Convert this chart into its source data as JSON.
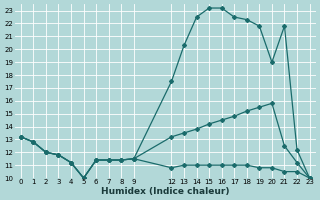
{
  "xlabel": "Humidex (Indice chaleur)",
  "bg_color": "#b2d8d8",
  "grid_color": "#ffffff",
  "line_color": "#1a6b6b",
  "ylim": [
    10,
    23.5
  ],
  "xlim": [
    -0.5,
    23.5
  ],
  "yticks": [
    10,
    11,
    12,
    13,
    14,
    15,
    16,
    17,
    18,
    19,
    20,
    21,
    22,
    23
  ],
  "xtick_positions": [
    0,
    1,
    2,
    3,
    4,
    5,
    6,
    7,
    8,
    9,
    12,
    13,
    14,
    15,
    16,
    17,
    18,
    19,
    20,
    21,
    22,
    23
  ],
  "xtick_labels": [
    "0",
    "1",
    "2",
    "3",
    "4",
    "5",
    "6",
    "7",
    "8",
    "9",
    "12",
    "13",
    "14",
    "15",
    "16",
    "17",
    "18",
    "19",
    "20",
    "21",
    "22",
    "23"
  ],
  "line_top_x": [
    0,
    1,
    2,
    3,
    4,
    5,
    6,
    7,
    8,
    9,
    12,
    13,
    14,
    15,
    16,
    17,
    18,
    19,
    20,
    21,
    22,
    23
  ],
  "line_top_y": [
    13.2,
    12.8,
    12.0,
    11.8,
    11.2,
    10.0,
    11.4,
    11.4,
    11.4,
    11.5,
    17.5,
    20.3,
    22.5,
    23.2,
    23.2,
    22.5,
    22.3,
    21.8,
    19.0,
    21.8,
    12.2,
    10.0
  ],
  "line_mid_x": [
    0,
    1,
    2,
    3,
    4,
    5,
    6,
    7,
    8,
    9,
    12,
    13,
    14,
    15,
    16,
    17,
    18,
    19,
    20,
    21,
    22,
    23
  ],
  "line_mid_y": [
    13.2,
    12.8,
    12.0,
    11.8,
    11.2,
    10.0,
    11.4,
    11.4,
    11.4,
    11.5,
    13.2,
    13.5,
    13.8,
    14.2,
    14.5,
    14.8,
    15.2,
    15.5,
    15.8,
    12.5,
    11.2,
    10.0
  ],
  "line_bot_x": [
    0,
    1,
    2,
    3,
    4,
    5,
    6,
    7,
    8,
    9,
    12,
    13,
    14,
    15,
    16,
    17,
    18,
    19,
    20,
    21,
    22,
    23
  ],
  "line_bot_y": [
    13.2,
    12.8,
    12.0,
    11.8,
    11.2,
    10.0,
    11.4,
    11.4,
    11.4,
    11.5,
    10.8,
    11.0,
    11.0,
    11.0,
    11.0,
    11.0,
    11.0,
    10.8,
    10.8,
    10.5,
    10.5,
    10.0
  ],
  "marker_size": 2.0,
  "line_width": 0.9,
  "tick_fontsize": 5.0,
  "xlabel_fontsize": 6.5
}
